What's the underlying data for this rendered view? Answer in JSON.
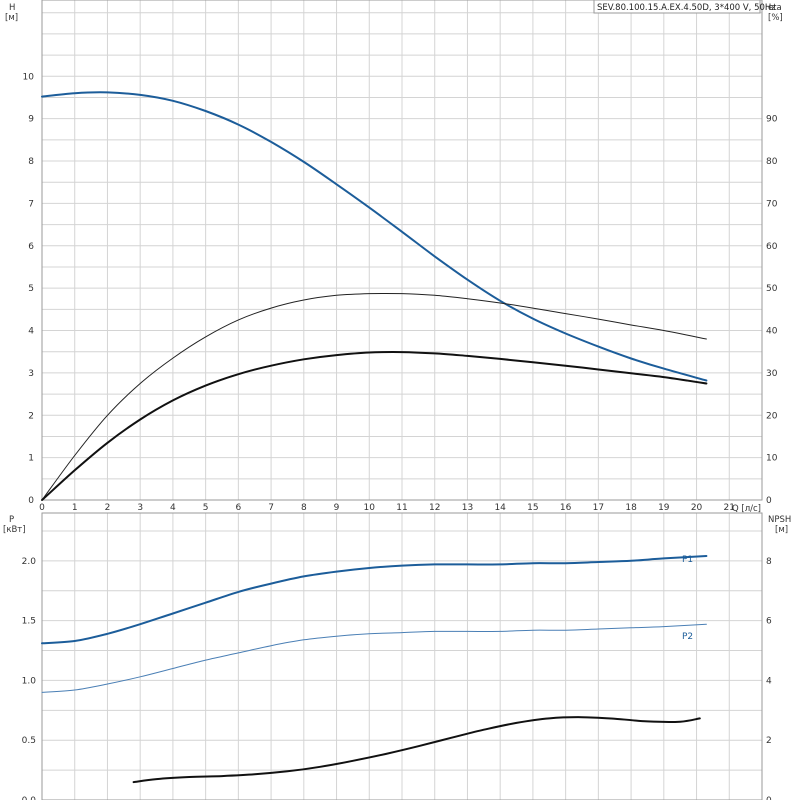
{
  "chart_data": [
    {
      "type": "line",
      "title": "SEV.80.100.15.A.EX.4.50D, 3*400 V, 50Hz",
      "xlabel": "Q [л/с]",
      "ylabel_left": [
        "H",
        "[м]"
      ],
      "ylabel_right": [
        "eta",
        "[%]"
      ],
      "xlim": [
        0,
        22
      ],
      "ylim_left": [
        0,
        11.8
      ],
      "ylim_right": [
        0,
        118
      ],
      "x_ticks": [
        0,
        1,
        2,
        3,
        4,
        5,
        6,
        7,
        8,
        9,
        10,
        11,
        12,
        13,
        14,
        15,
        16,
        17,
        18,
        19,
        20,
        21
      ],
      "y_ticks_left": [
        0,
        1,
        2,
        3,
        4,
        5,
        6,
        7,
        8,
        9,
        10
      ],
      "y_ticks_right": [
        0,
        10,
        20,
        30,
        40,
        50,
        60,
        70,
        80,
        90
      ],
      "grid": true,
      "series": [
        {
          "name": "",
          "axis": "left",
          "color": "#1c5d9a",
          "stroke": 2,
          "x": [
            0,
            1,
            2,
            3,
            4,
            5,
            6,
            7,
            8,
            9,
            10,
            11,
            12,
            13,
            14,
            15,
            16,
            17,
            18,
            19,
            20.3
          ],
          "y": [
            9.52,
            9.6,
            9.62,
            9.56,
            9.42,
            9.18,
            8.86,
            8.45,
            7.98,
            7.45,
            6.9,
            6.33,
            5.75,
            5.2,
            4.7,
            4.28,
            3.93,
            3.62,
            3.34,
            3.1,
            2.82
          ]
        },
        {
          "name": "",
          "axis": "right",
          "color": "#222222",
          "stroke": 1,
          "x": [
            0,
            1,
            2,
            3,
            4,
            5,
            6,
            7,
            8,
            9,
            10,
            11,
            12,
            13,
            14,
            15,
            16,
            17,
            18,
            19,
            20.3
          ],
          "y": [
            0,
            10.5,
            20,
            27.5,
            33.5,
            38.5,
            42.5,
            45.3,
            47.2,
            48.3,
            48.7,
            48.7,
            48.3,
            47.5,
            46.5,
            45.3,
            44,
            42.7,
            41.3,
            40,
            38
          ]
        },
        {
          "name": "",
          "axis": "right",
          "color": "#111111",
          "stroke": 2,
          "x": [
            0,
            1,
            2,
            3,
            4,
            5,
            6,
            7,
            8,
            9,
            10,
            11,
            12,
            13,
            14,
            15,
            16,
            17,
            18,
            19,
            20.3
          ],
          "y": [
            0,
            7,
            13.5,
            19,
            23.5,
            27,
            29.7,
            31.7,
            33.2,
            34.2,
            34.8,
            34.9,
            34.6,
            34,
            33.3,
            32.5,
            31.7,
            30.8,
            29.9,
            29,
            27.5
          ]
        }
      ]
    },
    {
      "type": "line",
      "ylabel_left": [
        "P",
        "[кВт]"
      ],
      "ylabel_right": [
        "NPSH",
        "[м]"
      ],
      "xlim": [
        0,
        22
      ],
      "ylim_left": [
        0,
        2.4
      ],
      "ylim_right": [
        0,
        9.6
      ],
      "y_ticks_left": [
        "0.0",
        "0.5",
        "1.0",
        "1.5",
        "2.0"
      ],
      "y_ticks_right": [
        0,
        2,
        4,
        6,
        8
      ],
      "grid": true,
      "series": [
        {
          "name": "P1",
          "axis": "left",
          "color": "#1c5d9a",
          "stroke": 2,
          "x": [
            0,
            1,
            2,
            3,
            4,
            5,
            6,
            7,
            8,
            9,
            10,
            11,
            12,
            13,
            14,
            15,
            16,
            17,
            18,
            19,
            20.3
          ],
          "y": [
            1.31,
            1.33,
            1.39,
            1.47,
            1.56,
            1.65,
            1.74,
            1.81,
            1.87,
            1.91,
            1.94,
            1.96,
            1.97,
            1.97,
            1.97,
            1.98,
            1.98,
            1.99,
            2.0,
            2.02,
            2.04
          ]
        },
        {
          "name": "P2",
          "axis": "left",
          "color": "#4a7fb5",
          "stroke": 1,
          "x": [
            0,
            1,
            2,
            3,
            4,
            5,
            6,
            7,
            8,
            9,
            10,
            11,
            12,
            13,
            14,
            15,
            16,
            17,
            18,
            19,
            20.3
          ],
          "y": [
            0.9,
            0.92,
            0.97,
            1.03,
            1.1,
            1.17,
            1.23,
            1.29,
            1.34,
            1.37,
            1.39,
            1.4,
            1.41,
            1.41,
            1.41,
            1.42,
            1.42,
            1.43,
            1.44,
            1.45,
            1.47
          ]
        },
        {
          "name": "",
          "axis": "right",
          "color": "#111111",
          "stroke": 2,
          "x": [
            2.8,
            3.5,
            4.5,
            5.5,
            6.5,
            7.5,
            8.5,
            9.5,
            10.5,
            11.5,
            12.5,
            13.5,
            14.5,
            15.5,
            16.5,
            17.5,
            18.5,
            19.5,
            20.1
          ],
          "y": [
            0.6,
            0.7,
            0.77,
            0.8,
            0.86,
            0.96,
            1.11,
            1.31,
            1.54,
            1.8,
            2.08,
            2.35,
            2.58,
            2.73,
            2.77,
            2.72,
            2.63,
            2.62,
            2.73
          ]
        }
      ]
    }
  ]
}
